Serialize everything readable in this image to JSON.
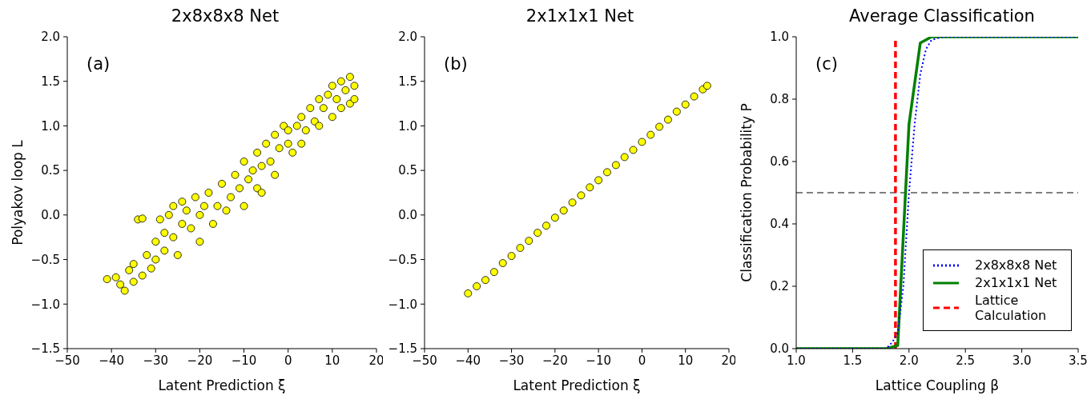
{
  "chart_data": [
    {
      "type": "scatter",
      "title": "2x8x8x8 Net",
      "xlabel": "Latent Prediction ξ",
      "ylabel": "Polyakov loop L",
      "annotations": [
        "(a)"
      ],
      "marker": "circle",
      "xlim": [
        -50,
        20
      ],
      "xticks": [
        -50,
        -40,
        -30,
        -20,
        -10,
        0,
        10,
        20
      ],
      "ylim": [
        -1.5,
        2.0
      ],
      "yticks": [
        {
          "value": -1.5,
          "label": "−1.5"
        },
        {
          "value": -1.0,
          "label": "−1.0"
        },
        {
          "value": -0.5,
          "label": "−0.5"
        },
        {
          "value": 0,
          "label": "0.0"
        },
        {
          "value": 0.5,
          "label": "0.5"
        },
        {
          "value": 1.0,
          "label": "1.0"
        },
        {
          "value": 1.5,
          "label": "1.5"
        },
        {
          "value": 2.0,
          "label": "2.0"
        }
      ],
      "x": [
        -41,
        -39,
        -38,
        -37,
        -36,
        -35,
        -34,
        -33,
        -35,
        -33,
        -32,
        -31,
        -30,
        -30,
        -29,
        -28,
        -28,
        -27,
        -26,
        -26,
        -25,
        -24,
        -24,
        -23,
        -22,
        -21,
        -20,
        -20,
        -19,
        -18,
        -17,
        -16,
        -15,
        -14,
        -13,
        -12,
        -11,
        -10,
        -10,
        -9,
        -8,
        -7,
        -7,
        -6,
        -6,
        -5,
        -4,
        -3,
        -3,
        -2,
        -1,
        0,
        0,
        1,
        2,
        3,
        3,
        4,
        5,
        6,
        7,
        7,
        8,
        9,
        10,
        10,
        11,
        12,
        12,
        13,
        14,
        14,
        15,
        15
      ],
      "series": [
        {
          "color": "#ffff00",
          "values": [
            -0.72,
            -0.7,
            -0.78,
            -0.85,
            -0.62,
            -0.75,
            -0.05,
            -0.04,
            -0.55,
            -0.68,
            -0.45,
            -0.6,
            -0.3,
            -0.5,
            -0.05,
            -0.2,
            -0.4,
            0.0,
            -0.25,
            0.1,
            -0.45,
            -0.1,
            0.15,
            0.05,
            -0.15,
            0.2,
            0.0,
            -0.3,
            0.1,
            0.25,
            -0.1,
            0.1,
            0.35,
            0.05,
            0.2,
            0.45,
            0.3,
            0.6,
            0.1,
            0.4,
            0.5,
            0.7,
            0.3,
            0.55,
            0.25,
            0.8,
            0.6,
            0.9,
            0.45,
            0.75,
            1.0,
            0.8,
            0.95,
            0.7,
            1.0,
            1.1,
            0.8,
            0.95,
            1.2,
            1.05,
            1.3,
            1.0,
            1.2,
            1.35,
            1.1,
            1.45,
            1.3,
            1.5,
            1.2,
            1.4,
            1.55,
            1.25,
            1.45,
            1.3
          ]
        }
      ]
    },
    {
      "type": "scatter",
      "title": "2x1x1x1 Net",
      "xlabel": "Latent Prediction ξ",
      "annotations": [
        "(b)"
      ],
      "marker": "circle",
      "xlim": [
        -50,
        20
      ],
      "xticks": [
        -50,
        -40,
        -30,
        -20,
        -10,
        0,
        10,
        20
      ],
      "ylim": [
        -1.5,
        2.0
      ],
      "yticks": [
        {
          "value": -1.5,
          "label": "−1.5"
        },
        {
          "value": -1.0,
          "label": "−1.0"
        },
        {
          "value": -0.5,
          "label": "−0.5"
        },
        {
          "value": 0,
          "label": "0.0"
        },
        {
          "value": 0.5,
          "label": "0.5"
        },
        {
          "value": 1.0,
          "label": "1.0"
        },
        {
          "value": 1.5,
          "label": "1.5"
        },
        {
          "value": 2.0,
          "label": "2.0"
        }
      ],
      "x": [
        -40,
        -38,
        -36,
        -34,
        -32,
        -30,
        -28,
        -26,
        -24,
        -22,
        -20,
        -18,
        -16,
        -14,
        -12,
        -10,
        -8,
        -6,
        -4,
        -2,
        0,
        2,
        4,
        6,
        8,
        10,
        12,
        14,
        15
      ],
      "series": [
        {
          "color": "#ffff00",
          "values": [
            -0.88,
            -0.8,
            -0.73,
            -0.64,
            -0.54,
            -0.46,
            -0.37,
            -0.29,
            -0.2,
            -0.12,
            -0.03,
            0.05,
            0.14,
            0.22,
            0.31,
            0.39,
            0.48,
            0.56,
            0.65,
            0.73,
            0.82,
            0.9,
            0.99,
            1.07,
            1.16,
            1.24,
            1.33,
            1.41,
            1.45
          ]
        }
      ]
    },
    {
      "type": "line",
      "title": "Average Classification",
      "xlabel": "Lattice Coupling β",
      "ylabel": "Classification Probability P",
      "annotations": [
        "(c)"
      ],
      "legend": "bottom right",
      "xlim": [
        1.0,
        3.5
      ],
      "xticks": [
        {
          "value": 1.0,
          "label": "1.0"
        },
        {
          "value": 1.5,
          "label": "1.5"
        },
        {
          "value": 2.0,
          "label": "2.0"
        },
        {
          "value": 2.5,
          "label": "2.5"
        },
        {
          "value": 3.0,
          "label": "3.0"
        },
        {
          "value": 3.5,
          "label": "3.5"
        }
      ],
      "ylim": [
        0,
        1.0
      ],
      "yticks": [
        {
          "value": 0,
          "label": "0.0"
        },
        {
          "value": 0.2,
          "label": "0.2"
        },
        {
          "value": 0.4,
          "label": "0.4"
        },
        {
          "value": 0.6,
          "label": "0.6"
        },
        {
          "value": 0.8,
          "label": "0.8"
        },
        {
          "value": 1.0,
          "label": "1.0"
        }
      ],
      "ref_lines": [
        {
          "axis": "y",
          "value": 0.5,
          "color": "#808080",
          "line_style": "dashed"
        }
      ],
      "series": [
        {
          "name": "2x8x8x8 Net",
          "color": "#0000ff",
          "line_style": "dotted",
          "x": [
            1.0,
            1.8,
            1.85,
            1.9,
            1.95,
            2.0,
            2.05,
            2.1,
            2.15,
            2.2,
            2.3,
            3.5
          ],
          "values": [
            0,
            0,
            0.02,
            0.05,
            0.2,
            0.5,
            0.72,
            0.88,
            0.96,
            0.99,
            1.0,
            1.0
          ]
        },
        {
          "name": "2x1x1x1 Net",
          "color": "#008000",
          "line_style": "solid",
          "x": [
            1.0,
            1.8,
            1.9,
            2.0,
            2.1,
            2.2,
            3.5
          ],
          "values": [
            0,
            0,
            0.01,
            0.72,
            0.98,
            1.0,
            1.0
          ]
        },
        {
          "name": "Lattice Calculation",
          "color": "#ff0000",
          "line_style": "dashed",
          "x": [
            1.88,
            1.88
          ],
          "values": [
            0,
            1.0
          ]
        }
      ]
    }
  ]
}
